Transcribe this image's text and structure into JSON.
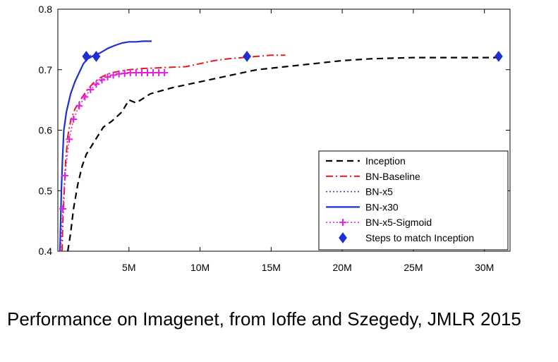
{
  "caption": "Performance on Imagenet, from Ioffe and Szegedy,  JMLR 2015",
  "chart_data": {
    "type": "line",
    "xlim": [
      0,
      31.8
    ],
    "ylim": [
      0.4,
      0.8
    ],
    "x_ticks": [
      {
        "value": 5,
        "label": "5M"
      },
      {
        "value": 10,
        "label": "10M"
      },
      {
        "value": 15,
        "label": "15M"
      },
      {
        "value": 20,
        "label": "20M"
      },
      {
        "value": 25,
        "label": "25M"
      },
      {
        "value": 30,
        "label": "30M"
      }
    ],
    "y_ticks": [
      {
        "value": 0.4,
        "label": "0.4"
      },
      {
        "value": 0.5,
        "label": "0.5"
      },
      {
        "value": 0.6,
        "label": "0.6"
      },
      {
        "value": 0.7,
        "label": "0.7"
      },
      {
        "value": 0.8,
        "label": "0.8"
      }
    ],
    "grid": false,
    "legend_position": "bottom-right",
    "series": [
      {
        "name": "Inception",
        "color": "#000000",
        "style": "dashed",
        "marker": "none",
        "points": [
          [
            0.7,
            0.4
          ],
          [
            0.9,
            0.43
          ],
          [
            1.1,
            0.47
          ],
          [
            1.4,
            0.51
          ],
          [
            1.7,
            0.54
          ],
          [
            2.0,
            0.56
          ],
          [
            2.4,
            0.575
          ],
          [
            2.8,
            0.59
          ],
          [
            3.2,
            0.605
          ],
          [
            3.8,
            0.615
          ],
          [
            4.5,
            0.63
          ],
          [
            5.0,
            0.65
          ],
          [
            5.5,
            0.645
          ],
          [
            6.5,
            0.66
          ],
          [
            8.0,
            0.67
          ],
          [
            10.0,
            0.68
          ],
          [
            12.0,
            0.69
          ],
          [
            14.0,
            0.7
          ],
          [
            16.0,
            0.705
          ],
          [
            18.0,
            0.71
          ],
          [
            20.0,
            0.715
          ],
          [
            22.0,
            0.718
          ],
          [
            25.0,
            0.72
          ],
          [
            28.0,
            0.72
          ],
          [
            31.0,
            0.72
          ]
        ]
      },
      {
        "name": "BN-Baseline",
        "color": "#e41a1c",
        "style": "dashdot",
        "marker": "none",
        "points": [
          [
            0.3,
            0.4
          ],
          [
            0.35,
            0.45
          ],
          [
            0.45,
            0.5
          ],
          [
            0.55,
            0.55
          ],
          [
            0.7,
            0.59
          ],
          [
            0.9,
            0.615
          ],
          [
            1.2,
            0.635
          ],
          [
            1.6,
            0.65
          ],
          [
            2.0,
            0.665
          ],
          [
            2.5,
            0.678
          ],
          [
            3.0,
            0.687
          ],
          [
            3.5,
            0.693
          ],
          [
            4.0,
            0.696
          ],
          [
            5.0,
            0.7
          ],
          [
            6.0,
            0.702
          ],
          [
            7.0,
            0.703
          ],
          [
            8.0,
            0.704
          ],
          [
            9.0,
            0.705
          ],
          [
            10.0,
            0.71
          ],
          [
            11.0,
            0.715
          ],
          [
            12.0,
            0.718
          ],
          [
            13.0,
            0.72
          ],
          [
            14.0,
            0.722
          ],
          [
            15.0,
            0.724
          ],
          [
            16.0,
            0.724
          ]
        ]
      },
      {
        "name": "BN-x5",
        "color": "#3b3bd6",
        "style": "dotted",
        "marker": "none",
        "points": [
          [
            0.15,
            0.4
          ],
          [
            0.2,
            0.45
          ],
          [
            0.25,
            0.5
          ],
          [
            0.32,
            0.55
          ],
          [
            0.42,
            0.6
          ],
          [
            0.6,
            0.63
          ],
          [
            0.9,
            0.66
          ],
          [
            1.2,
            0.68
          ],
          [
            1.5,
            0.695
          ],
          [
            1.8,
            0.71
          ],
          [
            2.1,
            0.72
          ],
          [
            2.4,
            0.725
          ]
        ]
      },
      {
        "name": "BN-x30",
        "color": "#1f2fd0",
        "style": "solid",
        "marker": "none",
        "points": [
          [
            0.15,
            0.4
          ],
          [
            0.2,
            0.45
          ],
          [
            0.25,
            0.5
          ],
          [
            0.32,
            0.55
          ],
          [
            0.42,
            0.6
          ],
          [
            0.6,
            0.63
          ],
          [
            0.9,
            0.66
          ],
          [
            1.2,
            0.68
          ],
          [
            1.5,
            0.695
          ],
          [
            1.8,
            0.71
          ],
          [
            2.1,
            0.718
          ],
          [
            2.5,
            0.723
          ],
          [
            3.0,
            0.728
          ],
          [
            3.5,
            0.735
          ],
          [
            4.0,
            0.74
          ],
          [
            4.5,
            0.744
          ],
          [
            5.0,
            0.746
          ],
          [
            5.5,
            0.746
          ],
          [
            6.0,
            0.747
          ],
          [
            6.6,
            0.747
          ]
        ]
      },
      {
        "name": "BN-x5-Sigmoid",
        "color": "#e020e0",
        "style": "dotted",
        "marker": "plus",
        "points": [
          [
            0.2,
            0.4
          ],
          [
            0.35,
            0.47
          ],
          [
            0.5,
            0.525
          ],
          [
            0.8,
            0.585
          ],
          [
            1.1,
            0.618
          ],
          [
            1.5,
            0.64
          ],
          [
            1.9,
            0.655
          ],
          [
            2.3,
            0.667
          ],
          [
            2.7,
            0.676
          ],
          [
            3.1,
            0.683
          ],
          [
            3.5,
            0.688
          ],
          [
            3.9,
            0.691
          ],
          [
            4.3,
            0.693
          ],
          [
            4.7,
            0.694
          ],
          [
            5.1,
            0.695
          ],
          [
            5.5,
            0.695
          ],
          [
            5.9,
            0.695
          ],
          [
            6.3,
            0.695
          ],
          [
            6.7,
            0.695
          ],
          [
            7.1,
            0.695
          ],
          [
            7.5,
            0.695
          ]
        ]
      }
    ],
    "match_points": {
      "name": "Steps to match Inception",
      "color": "#1f2fd0",
      "marker": "diamond",
      "points": [
        [
          2.0,
          0.722
        ],
        [
          2.7,
          0.722
        ],
        [
          13.3,
          0.722
        ],
        [
          31.0,
          0.722
        ]
      ]
    }
  }
}
